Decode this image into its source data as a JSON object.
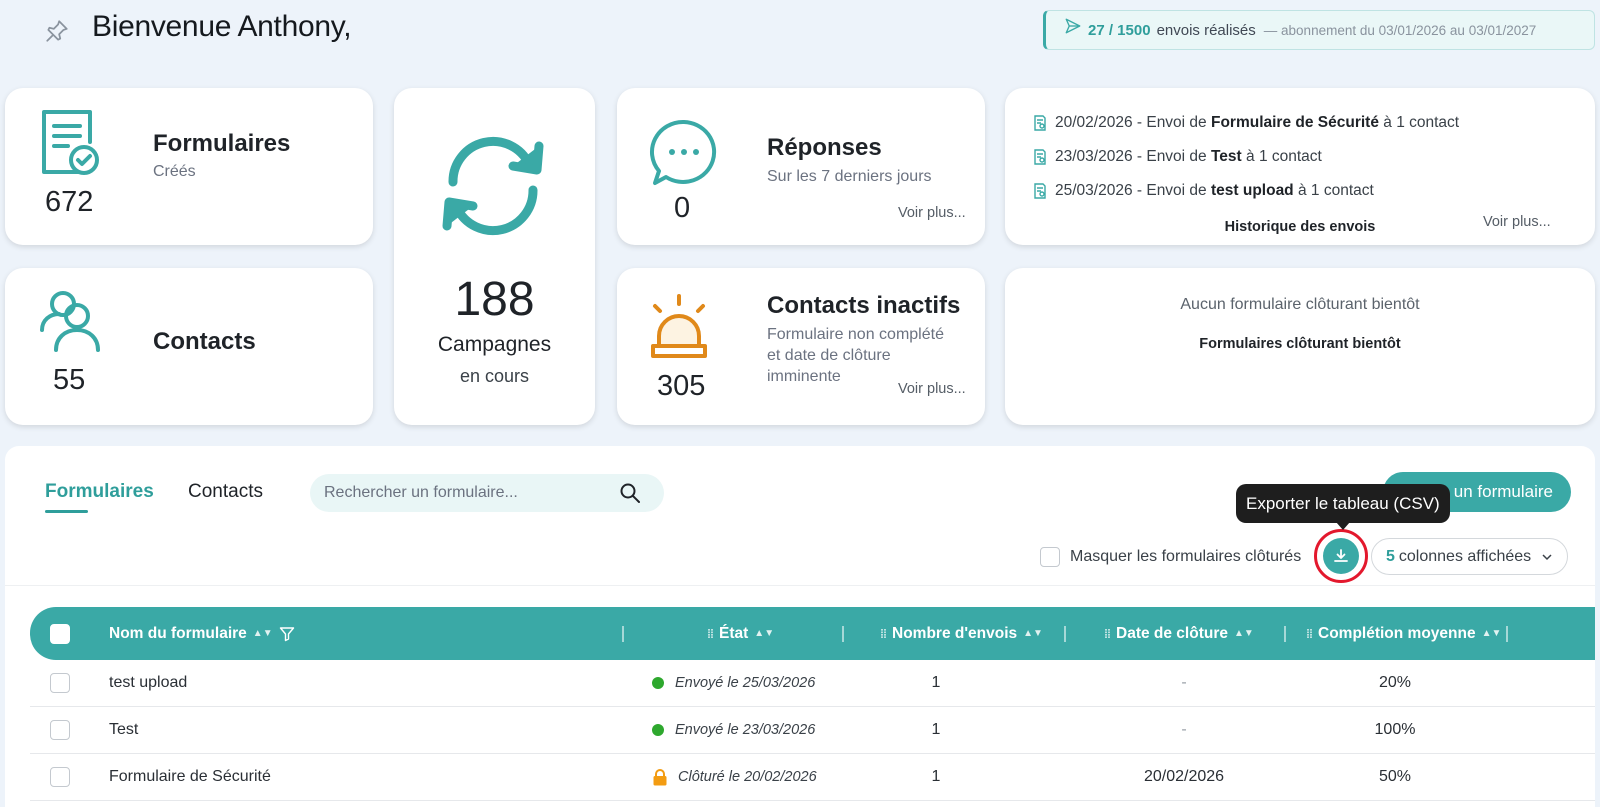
{
  "header": {
    "welcome": "Bienvenue Anthony,",
    "quota_count": "27 / 1500",
    "quota_label": "envois réalisés",
    "quota_sub": "— abonnement du 03/01/2026 au 03/01/2027"
  },
  "cards": {
    "formulaires": {
      "title": "Formulaires",
      "sub": "Créés",
      "value": "672"
    },
    "contacts": {
      "title": "Contacts",
      "value": "55"
    },
    "campagnes": {
      "value": "188",
      "title": "Campagnes",
      "sub": "en cours"
    },
    "reponses": {
      "title": "Réponses",
      "sub": "Sur les 7 derniers jours",
      "value": "0",
      "more": "Voir plus..."
    },
    "inactifs": {
      "title": "Contacts inactifs",
      "sub_line1": "Formulaire non complété",
      "sub_line2": "et date de clôture",
      "sub_line3": "imminente",
      "value": "305",
      "more": "Voir plus..."
    },
    "historique": {
      "items": [
        {
          "prefix": "20/02/2026 - Envoi de",
          "form": "Formulaire de Sécurité",
          "suffix": "à 1 contact"
        },
        {
          "prefix": "23/03/2026 - Envoi de",
          "form": "Test",
          "suffix": "à 1 contact"
        },
        {
          "prefix": "25/03/2026 - Envoi de",
          "form": "test upload",
          "suffix": "à 1 contact"
        }
      ],
      "title": "Historique des envois",
      "more": "Voir plus..."
    },
    "cloture": {
      "empty": "Aucun formulaire clôturant bientôt",
      "title": "Formulaires clôturant bientôt"
    }
  },
  "tabs": {
    "formulaires": "Formulaires",
    "contacts": "Contacts"
  },
  "search": {
    "placeholder": "Rechercher un formulaire..."
  },
  "toolbar": {
    "new_form": "un formulaire",
    "tooltip": "Exporter le tableau (CSV)",
    "mask_closed": "Masquer les formulaires clôturés",
    "columns_count": "5",
    "columns_label": "colonnes affichées"
  },
  "table": {
    "headers": {
      "name": "Nom du formulaire",
      "state": "État",
      "sends": "Nombre d'envois",
      "close_date": "Date de clôture",
      "completion": "Complétion moyenne"
    },
    "rows": [
      {
        "name": "test upload",
        "state": "Envoyé le 25/03/2026",
        "status": "sent",
        "sends": "1",
        "close_date": "-",
        "completion": "20%"
      },
      {
        "name": "Test",
        "state": "Envoyé le 23/03/2026",
        "status": "sent",
        "sends": "1",
        "close_date": "-",
        "completion": "100%"
      },
      {
        "name": "Formulaire de Sécurité",
        "state": "Clôturé le 20/02/2026",
        "status": "closed",
        "sends": "1",
        "close_date": "20/02/2026",
        "completion": "50%"
      }
    ]
  },
  "colors": {
    "accent": "#3aa9a6",
    "sent": "#2ea82e",
    "closed": "#f39c12",
    "alert": "#e0891a",
    "highlight": "#e3182d"
  }
}
